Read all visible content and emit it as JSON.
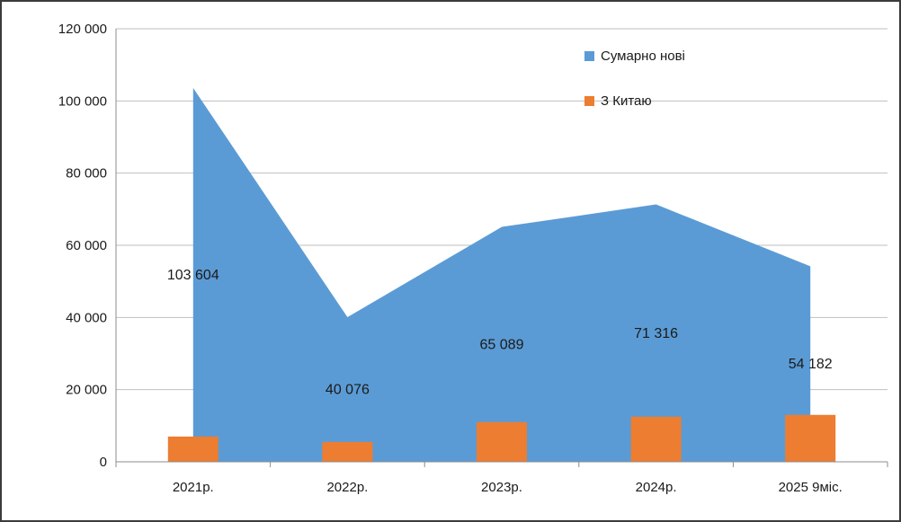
{
  "chart_data": {
    "type": "area",
    "subtype": "combo-area-bar",
    "categories": [
      "2021р.",
      "2022р.",
      "2023р.",
      "2024р.",
      "2025 9міс."
    ],
    "series": [
      {
        "name": "Сумарно нові",
        "type": "area",
        "color": "#5B9BD5",
        "values": [
          103604,
          40076,
          65089,
          71316,
          54182
        ],
        "labels": [
          "103 604",
          "40 076",
          "65 089",
          "71 316",
          "54 182"
        ]
      },
      {
        "name": "З Китаю",
        "type": "bar",
        "color": "#ED7D31",
        "values": [
          7000,
          5500,
          11000,
          12500,
          13000
        ],
        "labels": []
      }
    ],
    "y_axis": {
      "min": 0,
      "max": 120000,
      "step": 20000,
      "tick_labels": [
        "0",
        "20 000",
        "40 000",
        "60 000",
        "80 000",
        "100 000",
        "120 000"
      ]
    },
    "title": "",
    "xlabel": "",
    "ylabel": "",
    "grid": true,
    "legend_position": "top-right",
    "style": {
      "grid_color": "#BFBFBF",
      "axis_color": "#8C8C8C",
      "text_color": "#1a1a1a",
      "background": "#FFFFFF"
    }
  }
}
